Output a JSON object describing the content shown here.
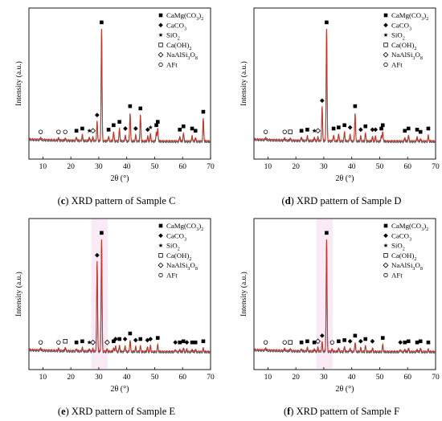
{
  "legend_entries": [
    {
      "symbol": "filled-square",
      "label": "CaMg(CO",
      "sub": "3",
      "post": ")",
      "sub2": "2"
    },
    {
      "symbol": "filled-diamond",
      "label": "CaCO",
      "sub": "3",
      "post": "",
      "sub2": ""
    },
    {
      "symbol": "star",
      "label": "SiO",
      "sub": "2",
      "post": "",
      "sub2": ""
    },
    {
      "symbol": "open-square",
      "label": "Ca(OH)",
      "sub": "2",
      "post": "",
      "sub2": ""
    },
    {
      "symbol": "open-diamond",
      "label": "NaAlSi",
      "sub": "3",
      "post": "O",
      "sub2": "8"
    },
    {
      "symbol": "open-circle",
      "label": "AFt",
      "sub": "",
      "post": "",
      "sub2": ""
    }
  ],
  "colors": {
    "pattern_line": "#c0392b",
    "baseline_shadow": "#1f2a44",
    "highlight_band": "#f6d9ee",
    "marker": "#000000"
  },
  "chart_data": [
    {
      "type": "line",
      "id": "C",
      "caption_letter": "(c)",
      "caption_rest": "XRD pattern of Sample C",
      "xlabel": "2θ (°)",
      "ylabel": "Intensity (a.u.)",
      "xlim": [
        5,
        70
      ],
      "x_ticks": [
        10,
        20,
        30,
        40,
        50,
        60,
        70
      ],
      "highlight": false,
      "peaks": [
        {
          "x": 9.2,
          "h": 0.02,
          "m": "open-circle"
        },
        {
          "x": 15.6,
          "h": 0.02,
          "m": "open-circle"
        },
        {
          "x": 18.0,
          "h": 0.02,
          "m": "open-circle"
        },
        {
          "x": 22.0,
          "h": 0.03,
          "m": "filled-square"
        },
        {
          "x": 24.1,
          "h": 0.05,
          "m": "filled-square"
        },
        {
          "x": 26.6,
          "h": 0.03,
          "m": "star"
        },
        {
          "x": 27.9,
          "h": 0.03,
          "m": "open-diamond"
        },
        {
          "x": 29.4,
          "h": 0.17,
          "m": "filled-diamond"
        },
        {
          "x": 31.0,
          "h": 1.0,
          "m": "filled-square"
        },
        {
          "x": 33.5,
          "h": 0.04,
          "m": "filled-square"
        },
        {
          "x": 35.3,
          "h": 0.08,
          "m": "filled-square"
        },
        {
          "x": 37.4,
          "h": 0.11,
          "m": "filled-square"
        },
        {
          "x": 39.5,
          "h": 0.05,
          "m": "filled-diamond"
        },
        {
          "x": 41.2,
          "h": 0.25,
          "m": "filled-square"
        },
        {
          "x": 43.2,
          "h": 0.05,
          "m": "filled-diamond"
        },
        {
          "x": 44.9,
          "h": 0.23,
          "m": "filled-square"
        },
        {
          "x": 47.5,
          "h": 0.04,
          "m": "filled-diamond"
        },
        {
          "x": 48.5,
          "h": 0.06,
          "m": "star"
        },
        {
          "x": 50.6,
          "h": 0.08,
          "m": "filled-square"
        },
        {
          "x": 51.1,
          "h": 0.11,
          "m": "filled-square"
        },
        {
          "x": 59.0,
          "h": 0.04,
          "m": "filled-square"
        },
        {
          "x": 60.3,
          "h": 0.07,
          "m": "filled-square"
        },
        {
          "x": 63.4,
          "h": 0.05,
          "m": "filled-square"
        },
        {
          "x": 64.6,
          "h": 0.03,
          "m": "filled-square"
        },
        {
          "x": 67.4,
          "h": 0.2,
          "m": "filled-square"
        }
      ]
    },
    {
      "type": "line",
      "id": "D",
      "caption_letter": "(d)",
      "caption_rest": "XRD pattern of Sample D",
      "xlabel": "2θ (°)",
      "ylabel": "Intensity (a.u.)",
      "xlim": [
        5,
        70
      ],
      "x_ticks": [
        10,
        20,
        30,
        40,
        50,
        60,
        70
      ],
      "highlight": false,
      "peaks": [
        {
          "x": 9.2,
          "h": 0.02,
          "m": "open-circle"
        },
        {
          "x": 16.0,
          "h": 0.02,
          "m": "open-circle"
        },
        {
          "x": 18.0,
          "h": 0.02,
          "m": "open-square"
        },
        {
          "x": 22.0,
          "h": 0.03,
          "m": "filled-square"
        },
        {
          "x": 24.1,
          "h": 0.04,
          "m": "filled-square"
        },
        {
          "x": 26.6,
          "h": 0.03,
          "m": "star"
        },
        {
          "x": 27.9,
          "h": 0.03,
          "m": "open-diamond"
        },
        {
          "x": 29.4,
          "h": 0.3,
          "m": "filled-diamond"
        },
        {
          "x": 31.0,
          "h": 1.0,
          "m": "filled-square"
        },
        {
          "x": 33.5,
          "h": 0.05,
          "m": "filled-square"
        },
        {
          "x": 35.3,
          "h": 0.06,
          "m": "filled-square"
        },
        {
          "x": 37.4,
          "h": 0.08,
          "m": "filled-square"
        },
        {
          "x": 39.4,
          "h": 0.06,
          "m": "filled-diamond"
        },
        {
          "x": 41.2,
          "h": 0.25,
          "m": "filled-square"
        },
        {
          "x": 43.2,
          "h": 0.04,
          "m": "filled-diamond"
        },
        {
          "x": 44.9,
          "h": 0.07,
          "m": "filled-square"
        },
        {
          "x": 47.4,
          "h": 0.04,
          "m": "filled-diamond"
        },
        {
          "x": 48.5,
          "h": 0.04,
          "m": "filled-diamond"
        },
        {
          "x": 50.6,
          "h": 0.05,
          "m": "filled-square"
        },
        {
          "x": 51.1,
          "h": 0.08,
          "m": "filled-square"
        },
        {
          "x": 59.0,
          "h": 0.03,
          "m": "filled-square"
        },
        {
          "x": 60.3,
          "h": 0.05,
          "m": "filled-square"
        },
        {
          "x": 63.4,
          "h": 0.04,
          "m": "filled-square"
        },
        {
          "x": 64.6,
          "h": 0.02,
          "m": "filled-square"
        },
        {
          "x": 67.4,
          "h": 0.05,
          "m": "filled-square"
        }
      ]
    },
    {
      "type": "line",
      "id": "E",
      "caption_letter": "(e)",
      "caption_rest": "XRD pattern of Sample E",
      "xlabel": "2θ (°)",
      "ylabel": "Intensity (a.u.)",
      "xlim": [
        5,
        70
      ],
      "x_ticks": [
        10,
        20,
        30,
        40,
        50,
        60,
        70
      ],
      "highlight": true,
      "peaks": [
        {
          "x": 9.2,
          "h": 0.02,
          "m": "open-circle"
        },
        {
          "x": 15.6,
          "h": 0.02,
          "m": "open-circle"
        },
        {
          "x": 18.0,
          "h": 0.03,
          "m": "open-square"
        },
        {
          "x": 22.0,
          "h": 0.02,
          "m": "filled-square"
        },
        {
          "x": 24.1,
          "h": 0.03,
          "m": "filled-square"
        },
        {
          "x": 26.6,
          "h": 0.02,
          "m": "star"
        },
        {
          "x": 27.9,
          "h": 0.02,
          "m": "open-diamond"
        },
        {
          "x": 29.4,
          "h": 0.8,
          "m": "filled-diamond"
        },
        {
          "x": 31.0,
          "h": 1.0,
          "m": "filled-square"
        },
        {
          "x": 33.0,
          "h": 0.02,
          "m": "open-diamond"
        },
        {
          "x": 35.3,
          "h": 0.03,
          "m": "filled-square"
        },
        {
          "x": 36.0,
          "h": 0.05,
          "m": "filled-diamond"
        },
        {
          "x": 37.4,
          "h": 0.05,
          "m": "filled-square"
        },
        {
          "x": 39.4,
          "h": 0.05,
          "m": "filled-diamond"
        },
        {
          "x": 41.2,
          "h": 0.1,
          "m": "filled-square"
        },
        {
          "x": 43.2,
          "h": 0.04,
          "m": "filled-diamond"
        },
        {
          "x": 44.9,
          "h": 0.05,
          "m": "filled-square"
        },
        {
          "x": 47.4,
          "h": 0.04,
          "m": "filled-diamond"
        },
        {
          "x": 48.5,
          "h": 0.05,
          "m": "filled-diamond"
        },
        {
          "x": 51.1,
          "h": 0.06,
          "m": "filled-square"
        },
        {
          "x": 57.4,
          "h": 0.02,
          "m": "filled-diamond"
        },
        {
          "x": 59.0,
          "h": 0.02,
          "m": "filled-square"
        },
        {
          "x": 60.3,
          "h": 0.03,
          "m": "filled-square"
        },
        {
          "x": 61.5,
          "h": 0.02,
          "m": "filled-diamond"
        },
        {
          "x": 63.4,
          "h": 0.02,
          "m": "filled-square"
        },
        {
          "x": 64.6,
          "h": 0.02,
          "m": "filled-square"
        },
        {
          "x": 67.4,
          "h": 0.03,
          "m": "filled-square"
        }
      ]
    },
    {
      "type": "line",
      "id": "F",
      "caption_letter": "(f)",
      "caption_rest": "XRD pattern of Sample F",
      "xlabel": "2θ (°)",
      "ylabel": "Intensity (a.u.)",
      "xlim": [
        5,
        70
      ],
      "x_ticks": [
        10,
        20,
        30,
        40,
        50,
        60,
        70
      ],
      "highlight": true,
      "peaks": [
        {
          "x": 9.2,
          "h": 0.02,
          "m": "open-circle"
        },
        {
          "x": 16.0,
          "h": 0.02,
          "m": "open-circle"
        },
        {
          "x": 18.0,
          "h": 0.02,
          "m": "open-square"
        },
        {
          "x": 22.0,
          "h": 0.02,
          "m": "filled-square"
        },
        {
          "x": 24.1,
          "h": 0.03,
          "m": "filled-square"
        },
        {
          "x": 26.6,
          "h": 0.02,
          "m": "filled-square"
        },
        {
          "x": 27.9,
          "h": 0.03,
          "m": "open-diamond"
        },
        {
          "x": 29.4,
          "h": 0.08,
          "m": "filled-diamond"
        },
        {
          "x": 31.0,
          "h": 1.0,
          "m": "filled-square"
        },
        {
          "x": 33.0,
          "h": 0.02,
          "m": "open-circle"
        },
        {
          "x": 35.3,
          "h": 0.03,
          "m": "filled-square"
        },
        {
          "x": 37.4,
          "h": 0.04,
          "m": "filled-square"
        },
        {
          "x": 39.4,
          "h": 0.03,
          "m": "filled-diamond"
        },
        {
          "x": 41.2,
          "h": 0.08,
          "m": "filled-square"
        },
        {
          "x": 43.2,
          "h": 0.03,
          "m": "filled-diamond"
        },
        {
          "x": 44.9,
          "h": 0.05,
          "m": "filled-square"
        },
        {
          "x": 47.4,
          "h": 0.03,
          "m": "filled-diamond"
        },
        {
          "x": 51.1,
          "h": 0.06,
          "m": "filled-square"
        },
        {
          "x": 57.4,
          "h": 0.02,
          "m": "filled-diamond"
        },
        {
          "x": 59.0,
          "h": 0.02,
          "m": "filled-square"
        },
        {
          "x": 60.3,
          "h": 0.03,
          "m": "filled-square"
        },
        {
          "x": 63.4,
          "h": 0.02,
          "m": "filled-square"
        },
        {
          "x": 64.6,
          "h": 0.03,
          "m": "filled-square"
        },
        {
          "x": 67.4,
          "h": 0.02,
          "m": "filled-square"
        }
      ]
    }
  ]
}
